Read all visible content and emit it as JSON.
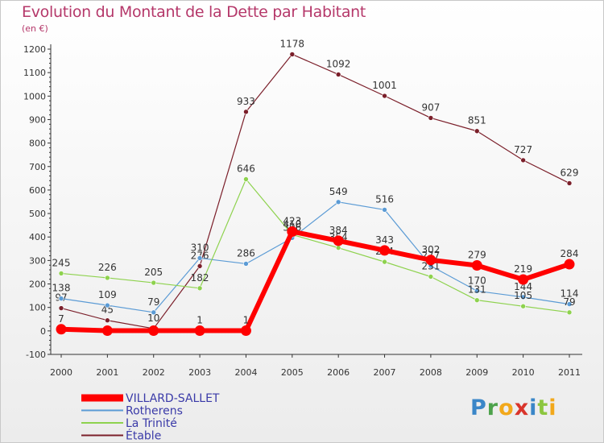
{
  "title": "Evolution du Montant de la Dette par Habitant",
  "unit_label": "(en €)",
  "logo": {
    "text": "Proxiti",
    "letters": [
      "P",
      "r",
      "o",
      "x",
      "i",
      "t",
      "i"
    ]
  },
  "chart_data": {
    "type": "line",
    "x": [
      "2000",
      "2001",
      "2002",
      "2003",
      "2004",
      "2005",
      "2006",
      "2007",
      "2008",
      "2009",
      "2010",
      "2011"
    ],
    "ylim": [
      -100,
      1200
    ],
    "yticks": [
      -100,
      0,
      100,
      200,
      300,
      400,
      500,
      600,
      700,
      800,
      900,
      1000,
      1100,
      1200
    ],
    "grid": false,
    "legend_position": "bottom-left",
    "series": [
      {
        "name": "Étable",
        "color": "#7b1f2a",
        "width": 1.2,
        "values": [
          97,
          45,
          10,
          276,
          933,
          1178,
          1092,
          1001,
          907,
          851,
          727,
          629
        ],
        "labels": [
          "97",
          "45",
          "10",
          "276",
          "933",
          "1178",
          "1092",
          "1001",
          "907",
          "851",
          "727",
          "629"
        ]
      },
      {
        "name": "Rotherens",
        "color": "#5b9bd5",
        "width": 1.2,
        "values": [
          138,
          109,
          79,
          310,
          286,
          396,
          549,
          516,
          277,
          170,
          144,
          114
        ],
        "labels": [
          "138",
          "109",
          "79",
          "310",
          "286",
          "396",
          "549",
          "516",
          "277",
          "170",
          "144",
          "114"
        ]
      },
      {
        "name": "La Trinité",
        "color": "#8ed24e",
        "width": 1.2,
        "values": [
          245,
          226,
          205,
          182,
          646,
          410,
          354,
          294,
          231,
          131,
          105,
          79
        ],
        "labels": [
          "245",
          "226",
          "205",
          "182",
          "646",
          "410",
          "354",
          "294",
          "231",
          "131",
          "105",
          "79"
        ]
      },
      {
        "name": "VILLARD-SALLET",
        "color": "#ff0000",
        "width": 6,
        "values": [
          7,
          1,
          1,
          1,
          1,
          423,
          384,
          343,
          302,
          279,
          219,
          284
        ],
        "labels": [
          "7",
          "",
          "",
          "1",
          "1",
          "423",
          "384",
          "343",
          "302",
          "279",
          "219",
          "284"
        ]
      }
    ],
    "legend_order": [
      "VILLARD-SALLET",
      "Rotherens",
      "La Trinité",
      "Étable"
    ]
  }
}
